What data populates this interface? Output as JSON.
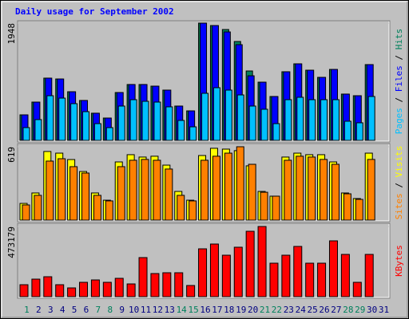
{
  "legend_separator": " / ",
  "chart_data": [
    {
      "type": "bar",
      "title": "Daily usage for September 2002",
      "ylim": [
        0,
        1948
      ],
      "yticks": [
        1948
      ],
      "series": [
        {
          "name": "Hits",
          "color": "#00805c",
          "values": [
            424,
            636,
            1034,
            1020,
            808,
            663,
            451,
            371,
            795,
            928,
            928,
            901,
            835,
            570,
            490,
            1948,
            1908,
            1842,
            1643,
            1153,
            967,
            729,
            1140,
            1272,
            1166,
            1047,
            1179,
            769,
            742,
            1259,
            0
          ]
        },
        {
          "name": "Files",
          "color": "#0000ff",
          "values": [
            424,
            636,
            1034,
            1020,
            808,
            663,
            451,
            371,
            795,
            928,
            928,
            901,
            835,
            570,
            490,
            1948,
            1908,
            1802,
            1590,
            1073,
            967,
            729,
            1140,
            1272,
            1166,
            1047,
            1179,
            769,
            742,
            1259,
            0
          ]
        },
        {
          "name": "Pages",
          "color": "#00c0ff",
          "values": [
            212,
            345,
            742,
            702,
            610,
            477,
            278,
            212,
            570,
            676,
            649,
            636,
            557,
            331,
            225,
            782,
            875,
            835,
            755,
            570,
            517,
            278,
            676,
            716,
            676,
            676,
            676,
            318,
            292,
            729,
            0
          ]
        }
      ]
    },
    {
      "type": "bar",
      "ylim": [
        0,
        619
      ],
      "yticks": [
        619
      ],
      "series": [
        {
          "name": "Visits",
          "color": "#ffff00",
          "values": [
            141,
            229,
            579,
            565,
            511,
            410,
            229,
            168,
            491,
            552,
            532,
            539,
            464,
            242,
            168,
            545,
            606,
            599,
            586,
            458,
            242,
            202,
            532,
            565,
            552,
            552,
            491,
            229,
            182,
            565,
            0
          ]
        },
        {
          "name": "Sites",
          "color": "#ff8000",
          "values": [
            128,
            209,
            498,
            518,
            451,
            397,
            209,
            162,
            451,
            505,
            512,
            505,
            431,
            209,
            162,
            505,
            539,
            565,
            619,
            471,
            235,
            202,
            505,
            539,
            532,
            512,
            471,
            222,
            175,
            512,
            0
          ]
        }
      ]
    },
    {
      "type": "bar",
      "ylim": [
        0,
        473179
      ],
      "yticks": [
        473179
      ],
      "categories": [
        "1",
        "2",
        "3",
        "4",
        "5",
        "6",
        "7",
        "8",
        "9",
        "10",
        "11",
        "12",
        "13",
        "14",
        "15",
        "16",
        "17",
        "18",
        "19",
        "20",
        "21",
        "22",
        "23",
        "24",
        "25",
        "26",
        "27",
        "28",
        "29",
        "30",
        "31"
      ],
      "category_colors": [
        "#00805c",
        "#000080",
        "#000080",
        "#000080",
        "#000080",
        "#000080",
        "#00805c",
        "#00805c",
        "#000080",
        "#000080",
        "#000080",
        "#000080",
        "#000080",
        "#00805c",
        "#00805c",
        "#000080",
        "#000080",
        "#000080",
        "#000080",
        "#000080",
        "#00805c",
        "#00805c",
        "#000080",
        "#000080",
        "#000080",
        "#000080",
        "#000080",
        "#00805c",
        "#00805c",
        "#000080",
        "#000080"
      ],
      "series": [
        {
          "name": "KBytes",
          "color": "#ff0000",
          "values": [
            80657,
            118300,
            134400,
            80657,
            59150,
            96800,
            112900,
            96800,
            123700,
            86000,
            263500,
            155900,
            161300,
            161300,
            75300,
            322600,
            354900,
            279600,
            333400,
            440900,
            473179,
            225800,
            279600,
            338800,
            225800,
            225800,
            376400,
            285000,
            96800,
            285000,
            0
          ]
        }
      ]
    }
  ]
}
